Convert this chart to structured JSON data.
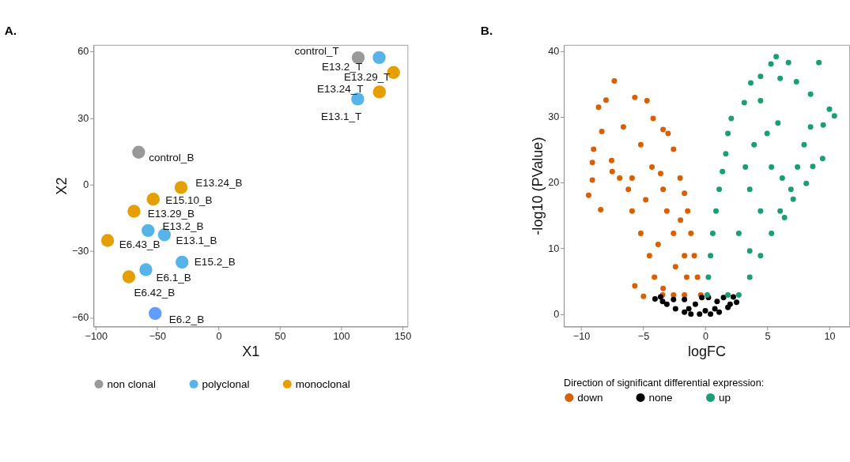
{
  "chart_data": [
    {
      "type": "scatter",
      "title": "A.",
      "xlabel": "X1",
      "ylabel": "X2",
      "xlim": [
        -102,
        154
      ],
      "ylim": [
        -64,
        63
      ],
      "xticks": [
        -100,
        -50,
        0,
        50,
        100,
        150
      ],
      "yticks": [
        -60,
        -30,
        0,
        30,
        60
      ],
      "grid": false,
      "legend": "bottom",
      "marker": "circle",
      "series": [
        {
          "name": "non clonal",
          "color": "#999999",
          "x": [
            113.8,
            -65.2
          ],
          "values": [
            57.2,
            14.6
          ],
          "value_labels": [
            "control_T",
            "control_B"
          ]
        },
        {
          "name": "polyclonal",
          "color": "#56b4e9",
          "x": [
            130.9,
            113.4,
            -57.5,
            -44.2,
            -29.8,
            -59.3
          ],
          "values": [
            57.3,
            38.6,
            -20.7,
            -22.6,
            -35.0,
            -38.4
          ],
          "value_labels": [
            "E13.2_T",
            "E13.1_T",
            "E13.2_B",
            "E13.1_B",
            "E15.2_B",
            "E6.1_B"
          ]
        },
        {
          "name": "monoclonal",
          "color": "#e69f00",
          "x": [
            142.6,
            131.1,
            -30.6,
            -53.3,
            -69.0,
            -90.5,
            -73.2
          ],
          "values": [
            50.6,
            41.8,
            -1.3,
            -6.6,
            -12.0,
            -25.2,
            -41.6
          ],
          "value_labels": [
            "E13.29_T",
            "E13.24_T",
            "E13.24_B",
            "E15.10_B",
            "E13.29_B",
            "E6.43_B",
            "E6.42_B"
          ]
        },
        {
          "color": "#619cff",
          "x": [
            -51.7
          ],
          "values": [
            -58.1
          ],
          "value_labels": [
            "E6.2_B"
          ]
        }
      ]
    },
    {
      "type": "scatter",
      "title": "B.",
      "xlabel": "logFC",
      "ylabel": "-log10 (PValue)",
      "legend_title": "Direction of significant differential expression:",
      "xlim": [
        -11.4,
        11.6
      ],
      "ylim": [
        -1.9,
        41
      ],
      "xticks": [
        -10,
        -5,
        0,
        5,
        10
      ],
      "yticks": [
        0,
        10,
        20,
        30,
        40
      ],
      "grid": false,
      "legend": "bottom",
      "marker": "circle",
      "series": [
        {
          "name": "down",
          "color": "#d95f02",
          "x": [
            -7.33,
            -9.4,
            -8.43,
            -5.68,
            -4.98,
            -8.0,
            -5.68,
            -4.7,
            -8.6,
            -9.0,
            -9.1,
            -9.1,
            -8.34,
            -7.55,
            -6.9,
            -6.2,
            -5.9,
            -5.2,
            -4.5,
            -4.1,
            -3.4,
            -4.2,
            -3.4,
            -3.0,
            -2.56,
            -2.03,
            -1.68,
            -1.42,
            -1.16,
            -0.89,
            -0.63,
            -0.37,
            -3.44,
            -2.56,
            -1.68,
            -5.2,
            -6.6,
            -7.5,
            -4.3,
            -3.4,
            -3.1,
            -2.56,
            -3.8,
            -2.4,
            -1.68,
            -4.8,
            -5.9,
            -3.6,
            -2.0,
            -1.5
          ],
          "values": [
            35.5,
            18.1,
            15.9,
            4.3,
            2.7,
            32.6,
            33.0,
            32.5,
            31.5,
            25.1,
            23.1,
            20.4,
            27.8,
            23.4,
            20.7,
            19.0,
            15.7,
            12.3,
            8.9,
            5.6,
            3.9,
            29.8,
            28.1,
            27.5,
            25.1,
            20.7,
            18.4,
            15.7,
            12.3,
            8.9,
            5.6,
            2.9,
            2.9,
            2.9,
            2.9,
            25.8,
            28.5,
            21.7,
            22.4,
            19.0,
            15.7,
            12.3,
            10.6,
            7.2,
            8.9,
            17.4,
            20.7,
            21.4,
            14.3,
            5.6
          ]
        },
        {
          "name": "none",
          "color": "#000000",
          "x": [
            -4.05,
            -3.6,
            -3.1,
            -2.4,
            -1.68,
            -1.16,
            -0.46,
            0,
            0.42,
            1.12,
            1.82,
            2.0,
            2.26,
            2.52,
            -0.28,
            0.25,
            -3.44,
            -2.56,
            -1.68,
            -0.8,
            0.95,
            1.47,
            -1.33,
            0.77
          ],
          "values": [
            2.3,
            2.6,
            1.5,
            0.8,
            0.3,
            0,
            0,
            0.5,
            0,
            0.3,
            1.0,
            1.5,
            2.6,
            1.8,
            2.5,
            2.5,
            1.9,
            2.2,
            2.2,
            1.5,
            1.9,
            2.5,
            0.8,
            0.8
          ]
        },
        {
          "name": "up",
          "color": "#1b9e77",
          "x": [
            5.71,
            5.29,
            6.7,
            9.15,
            10.0,
            10.4,
            9.45,
            8.13,
            8.66,
            8.48,
            9.5,
            6.03,
            7.34,
            4.45,
            3.66,
            3.14,
            2.09,
            1.82,
            1.65,
            1.38,
            1.12,
            0.86,
            0.6,
            0.42,
            0.25,
            0.16,
            2.7,
            1.82,
            3.58,
            4.45,
            5.33,
            6.03,
            6.9,
            7.43,
            7.96,
            8.48,
            7.08,
            6.38,
            4.98,
            3.93,
            3.23,
            3.58,
            4.45,
            2.7,
            3.58,
            5.33,
            6.2,
            4.45,
            5.85
          ],
          "values": [
            39.2,
            38.1,
            38.3,
            38.3,
            31.2,
            30.2,
            23.7,
            19.9,
            22.5,
            33.5,
            28.8,
            35.9,
            35.4,
            36.2,
            35.2,
            32.2,
            29.8,
            27.5,
            24.4,
            21.7,
            19.0,
            15.7,
            12.3,
            8.9,
            5.6,
            2.9,
            2.9,
            2.9,
            5.6,
            8.9,
            12.3,
            15.7,
            19.0,
            22.4,
            25.8,
            28.5,
            17.5,
            14.7,
            27.5,
            25.8,
            22.4,
            19.0,
            15.7,
            12.3,
            9.6,
            22.4,
            20.7,
            32.5,
            29.1
          ]
        }
      ]
    }
  ]
}
